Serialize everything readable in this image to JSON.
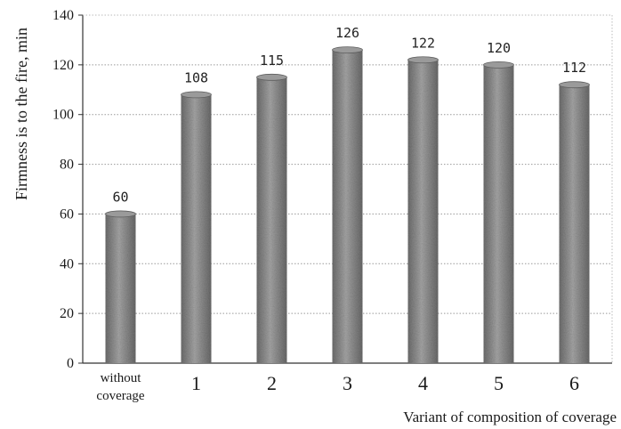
{
  "chart_data": {
    "type": "bar",
    "categories": [
      "without coverage",
      "1",
      "2",
      "3",
      "4",
      "5",
      "6"
    ],
    "category_lines": [
      [
        "without",
        "coverage"
      ],
      [
        "1"
      ],
      [
        "2"
      ],
      [
        "3"
      ],
      [
        "4"
      ],
      [
        "5"
      ],
      [
        "6"
      ]
    ],
    "values": [
      60,
      108,
      115,
      126,
      122,
      120,
      112
    ],
    "data_labels": [
      "60",
      "108",
      "115",
      "126",
      "122",
      "120",
      "112"
    ],
    "xlabel": "Variant of composition of coverage",
    "ylabel": "Firmness is to the fire, min",
    "ylim": [
      0,
      140
    ],
    "yticks": [
      0,
      20,
      40,
      60,
      80,
      100,
      120,
      140
    ],
    "grid": true,
    "legend": "none",
    "colors": {
      "bar": "#8c8c8c",
      "bar_dark": "#5a5a5a",
      "grid": "#9a9a9a",
      "axis": "#333333"
    }
  }
}
